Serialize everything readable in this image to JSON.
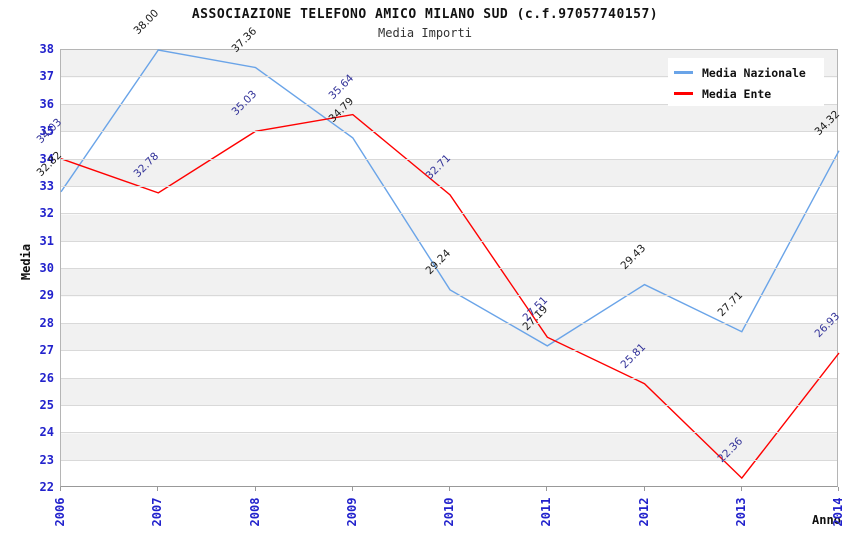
{
  "header": {
    "title": "ASSOCIAZIONE TELEFONO AMICO MILANO SUD (c.f.97057740157)",
    "subtitle": "Media Importi"
  },
  "legend": {
    "position": "top-right",
    "entries": [
      {
        "label": "Media Nazionale",
        "color": "#6aa4e8"
      },
      {
        "label": "Media Ente",
        "color": "#ff0000"
      }
    ]
  },
  "axes": {
    "y_title": "Media",
    "x_title": "Anno",
    "y_tick_labels": [
      "38",
      "37",
      "36",
      "35",
      "34",
      "33",
      "32",
      "31",
      "30",
      "29",
      "28",
      "27",
      "26",
      "25",
      "24",
      "23",
      "22"
    ],
    "x_tick_labels": [
      "2006",
      "2007",
      "2008",
      "2009",
      "2010",
      "2011",
      "2012",
      "2013",
      "2014"
    ],
    "tick_label_color": "#2222cc"
  },
  "chart_data": {
    "type": "line",
    "title": "ASSOCIAZIONE TELEFONO AMICO MILANO SUD (c.f.97057740157)",
    "subtitle": "Media Importi",
    "xlabel": "Anno",
    "ylabel": "Media",
    "x": [
      2006,
      2007,
      2008,
      2009,
      2010,
      2011,
      2012,
      2013,
      2014
    ],
    "series": [
      {
        "name": "Media Nazionale",
        "color": "#6aa4e8",
        "label_color": "#1a1a1a",
        "values": [
          32.82,
          38.0,
          37.36,
          34.79,
          29.24,
          27.19,
          29.43,
          27.71,
          34.32
        ]
      },
      {
        "name": "Media Ente",
        "color": "#ff0000",
        "label_color": "#333399",
        "values": [
          34.03,
          32.78,
          35.03,
          35.64,
          32.71,
          27.51,
          25.81,
          22.36,
          26.93
        ]
      }
    ],
    "ylim": [
      22,
      38
    ],
    "ytick_step": 1,
    "grid": "horizontal",
    "band_colors": [
      "#f1f1f1",
      "#ffffff"
    ],
    "legend_position": "top-right"
  }
}
